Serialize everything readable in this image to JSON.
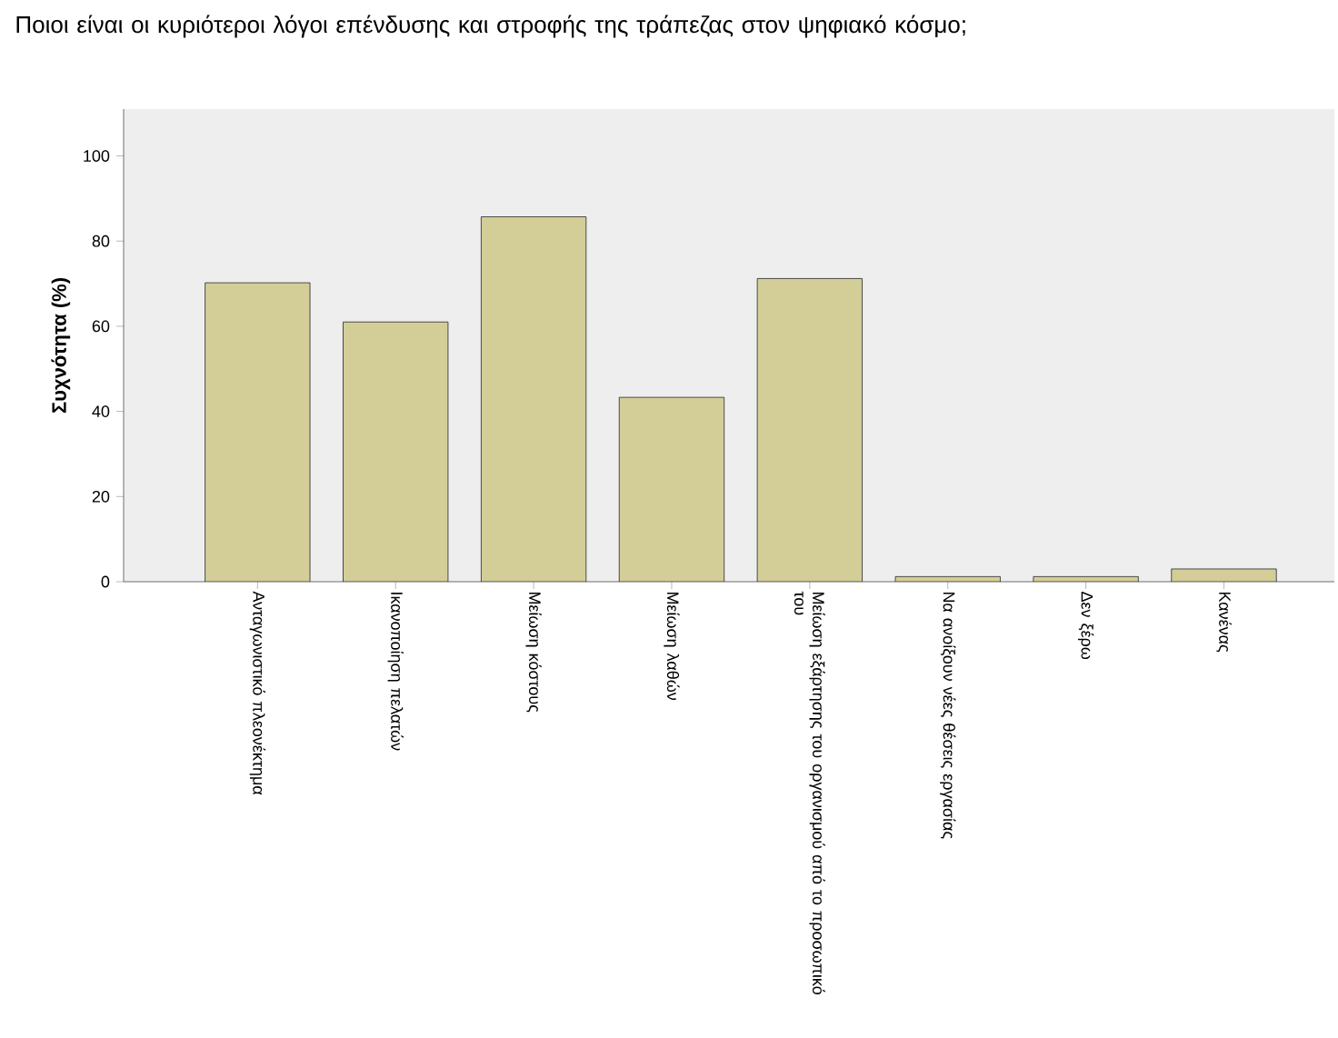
{
  "chart_data": {
    "type": "bar",
    "title": "Ποιοι είναι οι κυριότεροι λόγοι επένδυσης και στροφής της τράπεζας στον ψηφιακό κόσμο;",
    "ylabel": "Συχνότητα (%)",
    "categories": [
      "Ανταγωνιστικό πλεονέκτημα",
      "Ικανοποίηση πελατών",
      "Μείωση κόστους",
      "Μείωση λαθών",
      "Μείωση εξάρτησης του οργανισμού από το προσωπικό του",
      "Να ανοίξουν νέες θέσεις εργασίας",
      "Δεν ξέρω",
      "Κανένας"
    ],
    "values": [
      70.2,
      61,
      85.7,
      43.3,
      71.2,
      1.2,
      1.2,
      3
    ],
    "color": "#d3ce97",
    "ylim": [
      0,
      111
    ],
    "yticks": [
      0,
      20,
      40,
      60,
      80,
      100
    ]
  }
}
